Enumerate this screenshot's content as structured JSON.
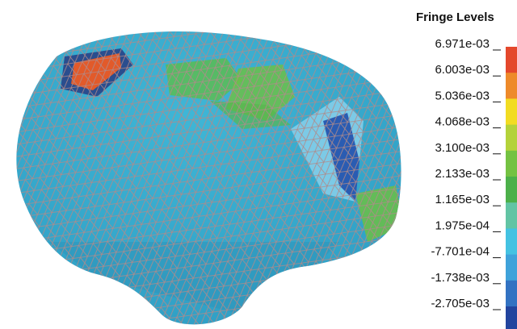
{
  "legend": {
    "title": "Fringe Levels",
    "levels": [
      "6.971e-03",
      "6.003e-03",
      "5.036e-03",
      "4.068e-03",
      "3.100e-03",
      "2.133e-03",
      "1.165e-03",
      "1.975e-04",
      "-7.701e-04",
      "-1.738e-03",
      "-2.705e-03"
    ],
    "colors": [
      "#e4482c",
      "#ee8a2a",
      "#f2dc22",
      "#b4d23a",
      "#74c242",
      "#4cb04a",
      "#62c4a4",
      "#44c2e2",
      "#3fa2da",
      "#3272c2",
      "#22449e"
    ]
  }
}
